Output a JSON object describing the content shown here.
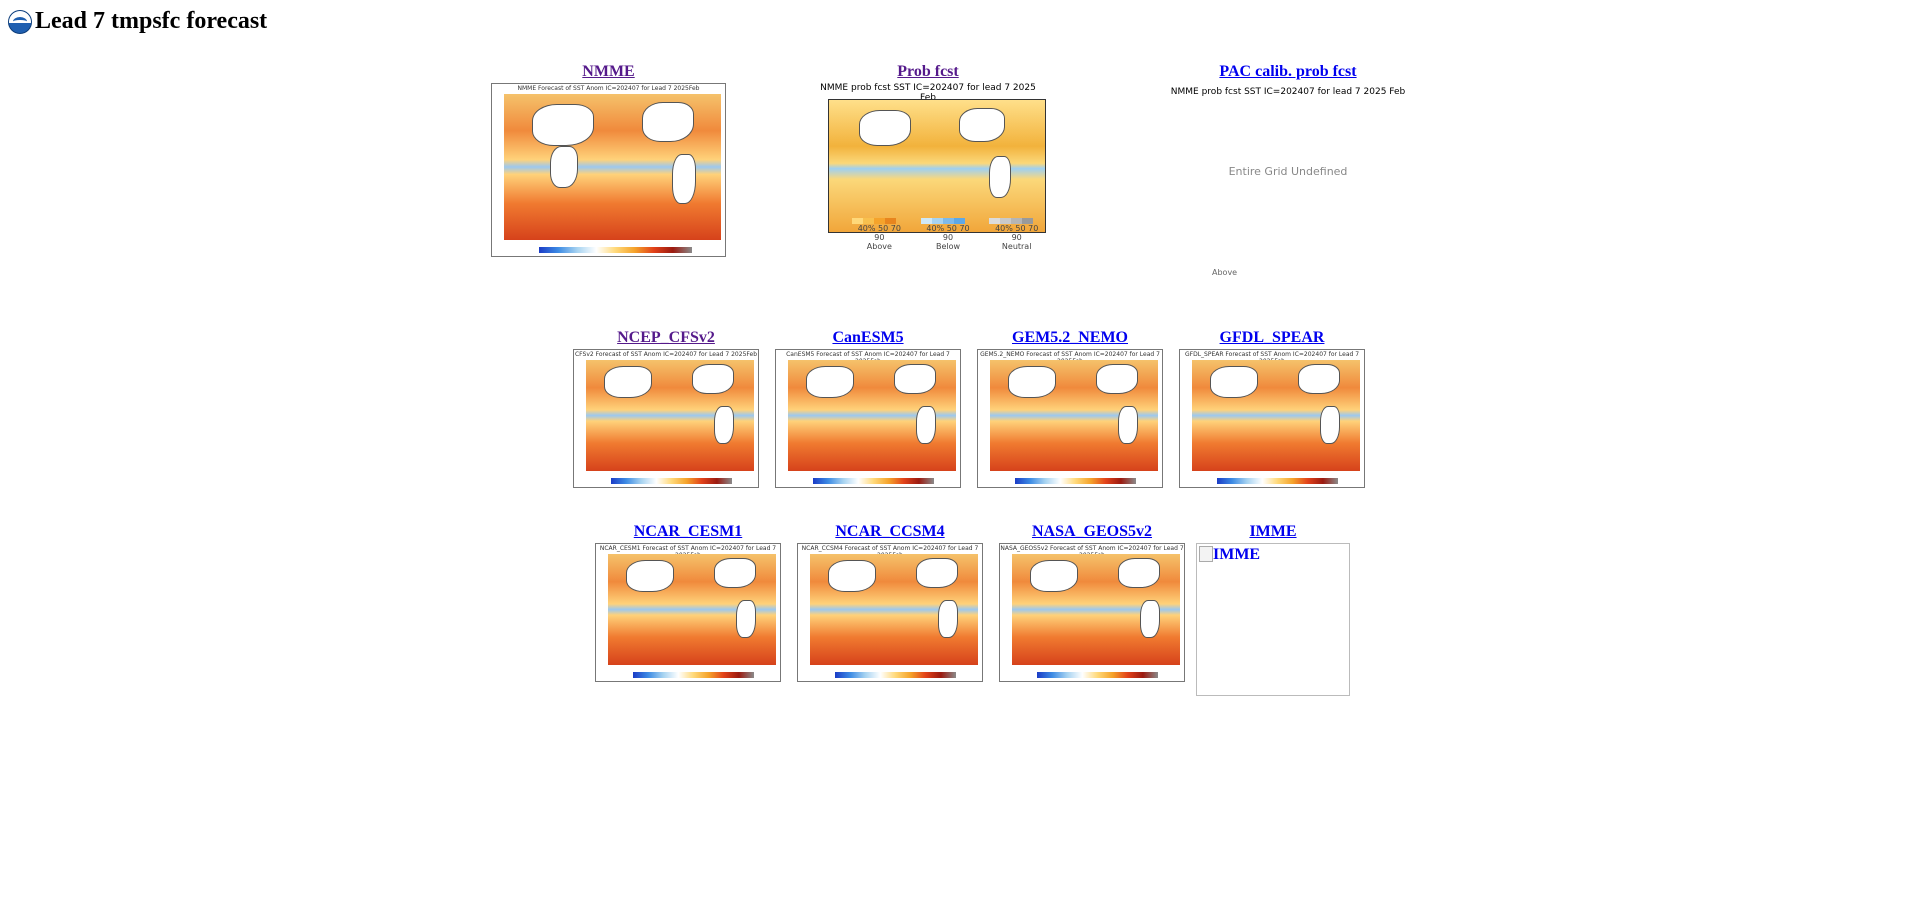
{
  "page": {
    "title": "Lead 7 tmpsfc forecast",
    "logo_icon": "noaa-logo-icon"
  },
  "top_row": [
    {
      "id": "nmme",
      "label": "NMME",
      "caption": "NMME Forecast of SST Anom IC=202407 for Lead 7 2025Feb",
      "visited": true
    },
    {
      "id": "prob",
      "label": "Prob fcst",
      "caption": "NMME prob fcst SST IC=202407 for lead 7 2025 Feb",
      "visited": true,
      "legend": [
        {
          "name": "Above",
          "ticks": "40% 50 70 90",
          "color": "#f5a32b"
        },
        {
          "name": "Below",
          "ticks": "40% 50 70 90",
          "color": "#5ea8e6"
        },
        {
          "name": "Neutral",
          "ticks": "40% 50 70 90",
          "color": "#b5b5b5"
        }
      ]
    },
    {
      "id": "pac",
      "label": "PAC calib. prob fcst",
      "caption": "NMME prob fcst SST IC=202407 for lead 7 2025 Feb",
      "message": "Entire Grid Undefined",
      "legend_label": "Above",
      "visited": false
    }
  ],
  "middle_row": [
    {
      "id": "cfsv2",
      "label": "NCEP_CFSv2",
      "caption": "CFSv2 Forecast of SST Anom IC=202407 for Lead 7 2025Feb",
      "visited": true
    },
    {
      "id": "canesm5",
      "label": "CanESM5",
      "caption": "CanESM5 Forecast of SST Anom IC=202407 for Lead 7 2025Feb",
      "visited": false
    },
    {
      "id": "gem",
      "label": "GEM5.2_NEMO",
      "caption": "GEM5.2_NEMO Forecast of SST Anom IC=202407 for Lead 7 2025Feb",
      "visited": false
    },
    {
      "id": "spear",
      "label": "GFDL_SPEAR",
      "caption": "GFDL_SPEAR Forecast of SST Anom IC=202407 for Lead 7 2025Feb",
      "visited": false
    }
  ],
  "bottom_row": [
    {
      "id": "cesm1",
      "label": "NCAR_CESM1",
      "caption": "NCAR_CESM1 Forecast of SST Anom IC=202407 for Lead 7 2025Feb",
      "visited": false
    },
    {
      "id": "ccsm4",
      "label": "NCAR_CCSM4",
      "caption": "NCAR_CCSM4 Forecast of SST Anom IC=202407 for Lead 7 2025Feb",
      "visited": false
    },
    {
      "id": "geos",
      "label": "NASA_GEOS5v2",
      "caption": "NASA_GEOS5v2 Forecast of SST Anom IC=202407 for Lead 7 2025Feb",
      "visited": false
    },
    {
      "id": "imme",
      "label": "IMME",
      "image_alt": "IMME",
      "visited": false
    }
  ],
  "colors": {
    "link": "#0000ee",
    "visited": "#551a8b"
  }
}
